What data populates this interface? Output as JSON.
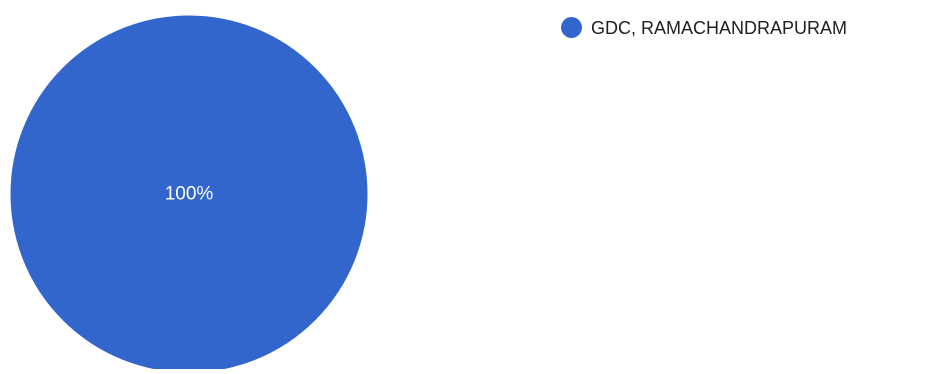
{
  "chart_data": {
    "type": "pie",
    "categories": [
      "GDC, RAMACHANDRAPURAM"
    ],
    "values": [
      100
    ],
    "colors": [
      "#3366cc"
    ],
    "slice_labels": [
      "100%"
    ],
    "legend": {
      "placement": "top-right",
      "items": [
        "GDC, RAMACHANDRAPURAM"
      ]
    },
    "label_color": "#ffffff"
  }
}
